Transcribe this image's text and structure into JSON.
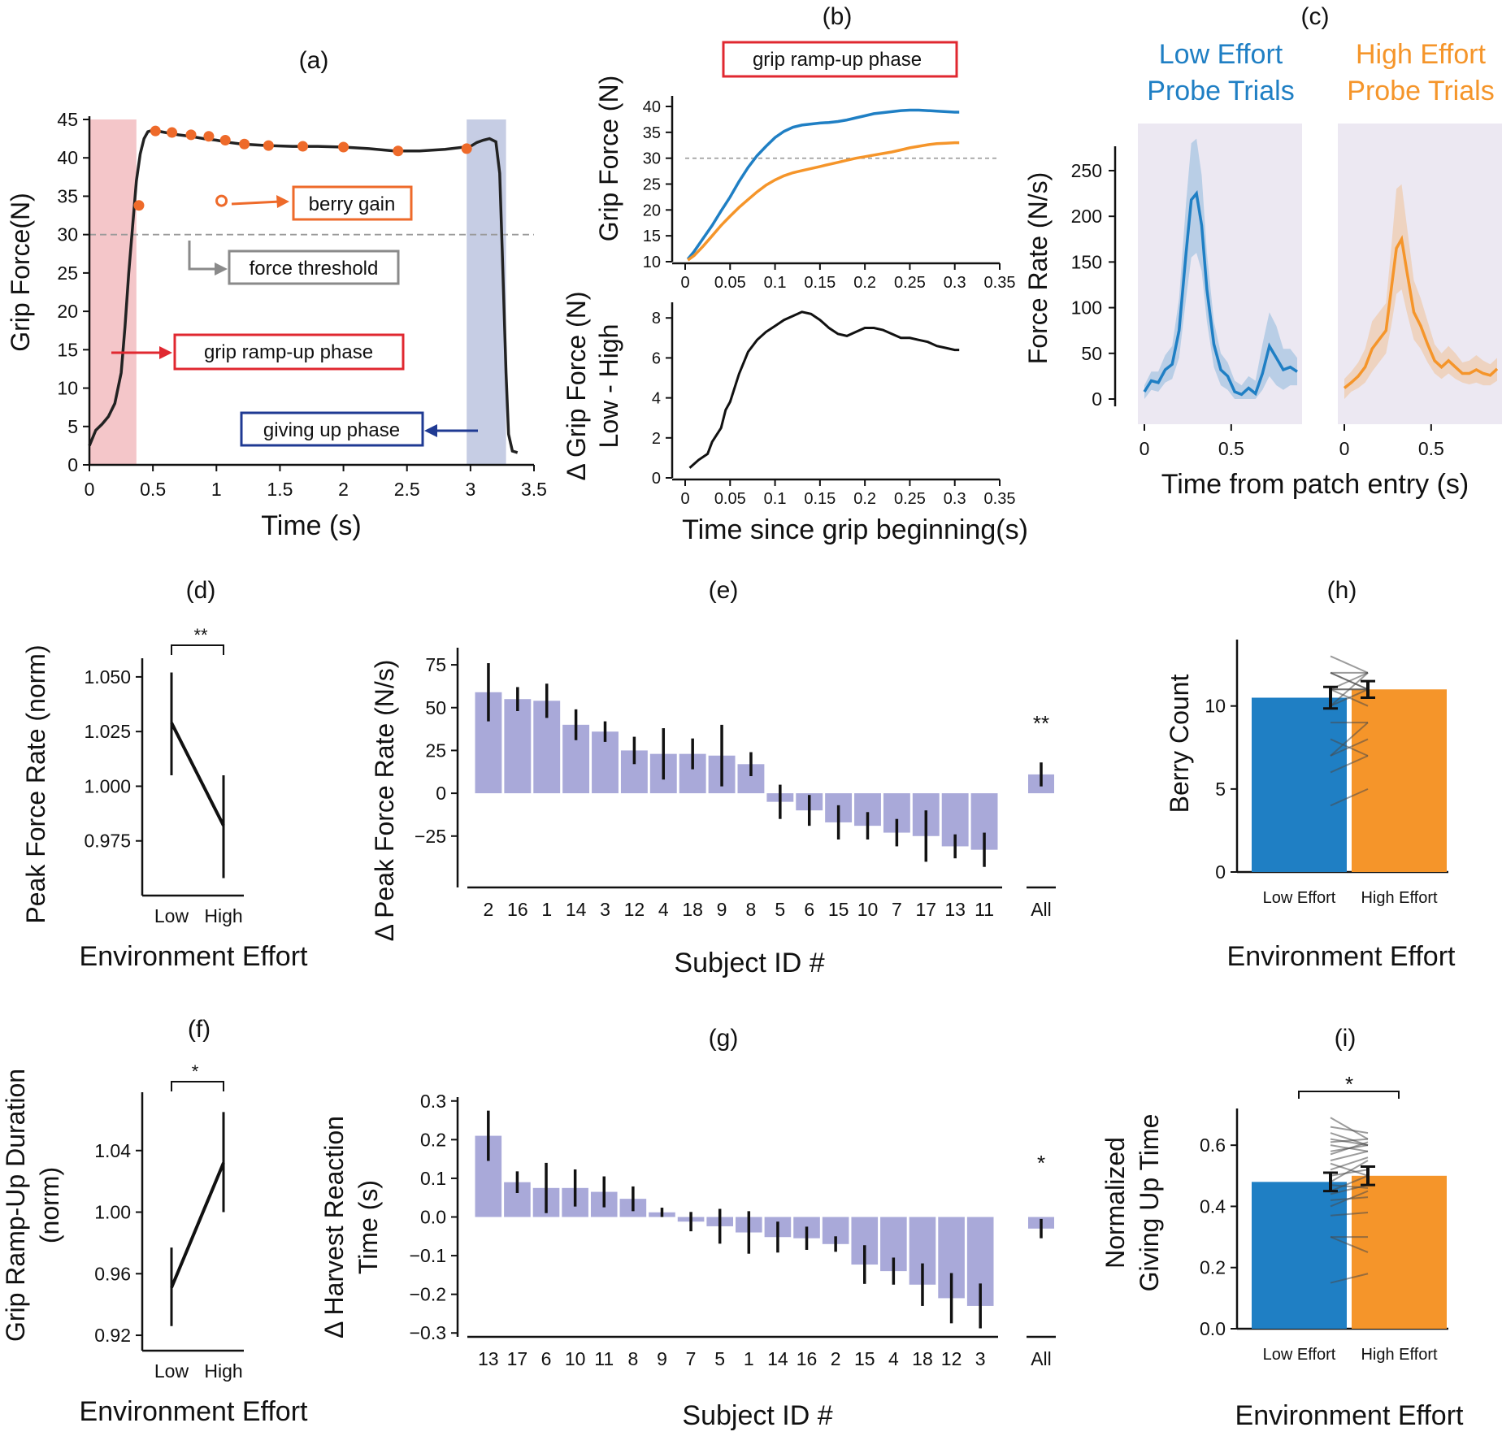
{
  "colors": {
    "blue": "#1f7fc4",
    "orange": "#f5952a",
    "bar_purple": "#a9a9d9",
    "red_shade": "#f4c6c9",
    "blue_shade": "#c6cde4",
    "probe_bg": "#ece8f2",
    "berry_orange": "#ee6a2a",
    "threshold_red": "#e02830",
    "gray": "#8a8a8a",
    "navy": "#1f3a93"
  },
  "panels": {
    "a": {
      "label": "(a)",
      "xlabel": "Time (s)",
      "ylabel": "Grip Force(N)"
    },
    "b": {
      "label": "(b)",
      "xlabel": "Time since grip beginning(s)",
      "ylabel_top": "Grip Force (N)",
      "ylabel_bottom_1": "Δ Grip Force (N)",
      "ylabel_bottom_2": "Low - High"
    },
    "c": {
      "label": "(c)",
      "ylabel": "Force Rate (N/s)",
      "xlabel": "Time from patch entry (s)",
      "low_title_1": "Low Effort",
      "low_title_2": "Probe Trials",
      "high_title_1": "High Effort",
      "high_title_2": "Probe Trials"
    },
    "d": {
      "label": "(d)",
      "ylabel": "Peak Force Rate (norm)",
      "xlabel": "Environment Effort",
      "sig": "**"
    },
    "e": {
      "label": "(e)",
      "ylabel": "Δ Peak Force Rate (N/s)",
      "xlabel": "Subject ID #",
      "sig": "**"
    },
    "f": {
      "label": "(f)",
      "ylabel_1": "Grip Ramp-Up Duration",
      "ylabel_2": "(norm)",
      "xlabel": "Environment Effort",
      "sig": "*"
    },
    "g": {
      "label": "(g)",
      "ylabel_1": "Δ Harvest Reaction",
      "ylabel_2": "Time (s)",
      "xlabel": "Subject ID #",
      "sig": "*"
    },
    "h": {
      "label": "(h)",
      "ylabel": "Berry Count",
      "xlabel": "Environment Effort"
    },
    "i": {
      "label": "(i)",
      "ylabel_1": "Normalized",
      "ylabel_2": "Giving Up Time",
      "xlabel": "Environment Effort",
      "sig": "*"
    }
  },
  "annotations": {
    "berry_gain": "berry gain",
    "force_threshold": "force threshold",
    "grip_ramp_up": "grip ramp-up phase",
    "giving_up": "giving up phase"
  },
  "chart_data": [
    {
      "id": "a",
      "type": "line",
      "xlim": [
        0,
        3.5
      ],
      "ylim": [
        0,
        45
      ],
      "xticks": [
        0,
        0.5,
        1,
        1.5,
        2,
        2.5,
        3,
        3.5
      ],
      "yticks": [
        0,
        5,
        10,
        15,
        20,
        25,
        30,
        35,
        40,
        45
      ],
      "threshold": 30,
      "ramp_region": [
        0,
        0.37
      ],
      "giving_up_region": [
        2.97,
        3.28
      ],
      "x": [
        0,
        0.05,
        0.1,
        0.15,
        0.2,
        0.25,
        0.28,
        0.31,
        0.34,
        0.37,
        0.4,
        0.43,
        0.46,
        0.5,
        0.6,
        0.7,
        0.8,
        0.9,
        1.0,
        1.1,
        1.2,
        1.4,
        1.6,
        1.8,
        2.0,
        2.2,
        2.4,
        2.6,
        2.8,
        3.0,
        3.05,
        3.1,
        3.15,
        3.2,
        3.23,
        3.25,
        3.28,
        3.3,
        3.33,
        3.37
      ],
      "y": [
        2.5,
        4.5,
        5.3,
        6.3,
        8.0,
        12.0,
        18.0,
        25.0,
        31.0,
        37.0,
        40.5,
        42.5,
        43.4,
        43.6,
        43.3,
        43.0,
        42.8,
        42.5,
        42.3,
        42.0,
        41.8,
        41.6,
        41.5,
        41.5,
        41.4,
        41.2,
        40.9,
        40.9,
        41.1,
        41.5,
        42.0,
        42.3,
        42.5,
        42.1,
        38.0,
        28.0,
        12.0,
        4.0,
        1.8,
        1.6
      ],
      "berry_points_x": [
        0.39,
        0.52,
        0.65,
        0.8,
        0.94,
        1.07,
        1.22,
        1.41,
        1.68,
        2.0,
        2.43,
        2.97
      ],
      "berry_points_y": [
        33.8,
        43.5,
        43.3,
        43.0,
        42.8,
        42.3,
        41.8,
        41.6,
        41.5,
        41.4,
        40.9,
        41.2
      ],
      "berry_legend_point": {
        "x": 1.04,
        "y": 34.4
      }
    },
    {
      "id": "b_top",
      "type": "line",
      "xlim": [
        0,
        0.35
      ],
      "ylim": [
        10,
        40
      ],
      "xticks": [
        0,
        0.05,
        0.1,
        0.15,
        0.2,
        0.25,
        0.3,
        0.35
      ],
      "yticks": [
        10,
        15,
        20,
        25,
        30,
        35,
        40
      ],
      "threshold": 30,
      "x": [
        0.003,
        0.01,
        0.02,
        0.03,
        0.04,
        0.05,
        0.06,
        0.07,
        0.08,
        0.09,
        0.1,
        0.11,
        0.12,
        0.13,
        0.14,
        0.15,
        0.16,
        0.17,
        0.18,
        0.19,
        0.2,
        0.21,
        0.22,
        0.23,
        0.24,
        0.25,
        0.26,
        0.27,
        0.28,
        0.29,
        0.3,
        0.305
      ],
      "series": [
        {
          "name": "Low Effort",
          "values": [
            10.5,
            12.0,
            14.5,
            17.0,
            19.8,
            22.5,
            25.5,
            28.2,
            30.5,
            32.3,
            34.0,
            35.2,
            36.0,
            36.4,
            36.6,
            36.8,
            36.9,
            37.1,
            37.4,
            37.8,
            38.2,
            38.6,
            38.8,
            39.0,
            39.2,
            39.3,
            39.3,
            39.2,
            39.1,
            39.0,
            38.9,
            38.9
          ]
        },
        {
          "name": "High Effort",
          "values": [
            10.3,
            11.2,
            13.0,
            15.0,
            17.0,
            18.8,
            20.5,
            22.0,
            23.5,
            24.8,
            25.8,
            26.6,
            27.2,
            27.6,
            28.0,
            28.4,
            28.8,
            29.2,
            29.6,
            30.0,
            30.3,
            30.6,
            30.9,
            31.2,
            31.6,
            32.0,
            32.3,
            32.6,
            32.8,
            32.9,
            33.0,
            33.0
          ]
        }
      ]
    },
    {
      "id": "b_bottom",
      "type": "line",
      "xlim": [
        0,
        0.35
      ],
      "ylim": [
        0,
        8.7
      ],
      "xticks": [
        0,
        0.05,
        0.1,
        0.15,
        0.2,
        0.25,
        0.3,
        0.35
      ],
      "yticks": [
        0,
        2,
        4,
        6,
        8
      ],
      "x": [
        0.005,
        0.015,
        0.025,
        0.03,
        0.04,
        0.045,
        0.05,
        0.06,
        0.07,
        0.08,
        0.09,
        0.1,
        0.11,
        0.12,
        0.13,
        0.14,
        0.15,
        0.16,
        0.17,
        0.18,
        0.19,
        0.2,
        0.21,
        0.22,
        0.23,
        0.24,
        0.25,
        0.26,
        0.27,
        0.28,
        0.29,
        0.3,
        0.305
      ],
      "y": [
        0.5,
        0.9,
        1.2,
        1.8,
        2.5,
        3.4,
        3.8,
        5.2,
        6.3,
        6.9,
        7.3,
        7.6,
        7.9,
        8.1,
        8.3,
        8.2,
        7.9,
        7.5,
        7.2,
        7.1,
        7.3,
        7.5,
        7.5,
        7.4,
        7.2,
        7.0,
        7.0,
        6.9,
        6.8,
        6.6,
        6.5,
        6.4,
        6.4
      ]
    },
    {
      "id": "c",
      "type": "line",
      "xlim": [
        0,
        0.88
      ],
      "ylim": [
        0,
        290
      ],
      "xticks": [
        0,
        0.5
      ],
      "yticks": [
        0,
        50,
        100,
        150,
        200,
        250
      ],
      "x": [
        0,
        0.04,
        0.08,
        0.12,
        0.16,
        0.2,
        0.24,
        0.27,
        0.3,
        0.33,
        0.36,
        0.4,
        0.44,
        0.48,
        0.52,
        0.56,
        0.6,
        0.64,
        0.68,
        0.72,
        0.76,
        0.8,
        0.84,
        0.88
      ],
      "series": [
        {
          "name": "Low Effort",
          "values": [
            8,
            20,
            18,
            32,
            38,
            75,
            160,
            218,
            225,
            190,
            120,
            60,
            32,
            25,
            8,
            5,
            12,
            6,
            28,
            58,
            45,
            32,
            35,
            30
          ],
          "lower": [
            0,
            10,
            8,
            18,
            22,
            45,
            110,
            155,
            160,
            140,
            85,
            35,
            15,
            10,
            0,
            0,
            0,
            0,
            10,
            25,
            15,
            10,
            15,
            15
          ],
          "upper": [
            15,
            30,
            30,
            48,
            58,
            110,
            215,
            280,
            285,
            245,
            160,
            85,
            50,
            40,
            20,
            15,
            25,
            20,
            60,
            95,
            80,
            55,
            55,
            45
          ]
        },
        {
          "name": "High Effort",
          "values": [
            12,
            18,
            25,
            35,
            55,
            65,
            75,
            120,
            165,
            175,
            140,
            95,
            80,
            60,
            42,
            35,
            42,
            35,
            28,
            28,
            32,
            28,
            26,
            33
          ],
          "lower": [
            0,
            8,
            12,
            18,
            30,
            40,
            50,
            80,
            115,
            120,
            95,
            65,
            55,
            40,
            28,
            22,
            28,
            22,
            18,
            16,
            18,
            15,
            15,
            20
          ],
          "upper": [
            22,
            30,
            40,
            55,
            85,
            95,
            105,
            165,
            230,
            235,
            190,
            130,
            110,
            85,
            60,
            50,
            58,
            50,
            40,
            42,
            48,
            42,
            38,
            45
          ]
        }
      ]
    },
    {
      "id": "d",
      "type": "line",
      "categories": [
        "Low",
        "High"
      ],
      "ylim": [
        0.95,
        1.06
      ],
      "yticks": [
        0.975,
        1.0,
        1.025,
        1.05
      ],
      "values": [
        1.029,
        0.982
      ],
      "err_low": [
        1.005,
        0.958
      ],
      "err_high": [
        1.052,
        1.005
      ]
    },
    {
      "id": "e",
      "type": "bar",
      "categories": [
        "2",
        "16",
        "1",
        "14",
        "3",
        "12",
        "4",
        "18",
        "9",
        "8",
        "5",
        "6",
        "15",
        "10",
        "7",
        "17",
        "13",
        "11"
      ],
      "values": [
        59,
        55,
        54,
        40,
        36,
        25,
        23,
        23,
        22,
        17,
        -5,
        -10,
        -17,
        -19,
        -23,
        -25,
        -31,
        -33
      ],
      "err": [
        17,
        7,
        10,
        9,
        6,
        8,
        15,
        9,
        18,
        7,
        10,
        9,
        10,
        8,
        8,
        15,
        7,
        10
      ],
      "all": {
        "category": "All",
        "value": 11,
        "err": 7
      },
      "ylim": [
        -55,
        85
      ],
      "yticks": [
        -25,
        0,
        25,
        50,
        75
      ]
    },
    {
      "id": "f",
      "type": "line",
      "categories": [
        "Low",
        "High"
      ],
      "ylim": [
        0.91,
        1.08
      ],
      "yticks": [
        0.92,
        0.96,
        1.0,
        1.04
      ],
      "values": [
        0.951,
        1.032
      ],
      "err_low": [
        0.926,
        1.0
      ],
      "err_high": [
        0.977,
        1.065
      ]
    },
    {
      "id": "g",
      "type": "bar",
      "categories": [
        "13",
        "17",
        "6",
        "10",
        "11",
        "8",
        "9",
        "7",
        "5",
        "1",
        "14",
        "16",
        "2",
        "15",
        "4",
        "18",
        "12",
        "3"
      ],
      "values": [
        0.21,
        0.09,
        0.075,
        0.075,
        0.065,
        0.047,
        0.012,
        -0.012,
        -0.024,
        -0.04,
        -0.052,
        -0.055,
        -0.07,
        -0.123,
        -0.14,
        -0.175,
        -0.21,
        -0.23
      ],
      "err": [
        0.065,
        0.028,
        0.065,
        0.048,
        0.04,
        0.032,
        0.012,
        0.025,
        0.045,
        0.055,
        0.04,
        0.03,
        0.02,
        0.05,
        0.035,
        0.055,
        0.065,
        0.058
      ],
      "all": {
        "category": "All",
        "value": -0.03,
        "err": 0.025
      },
      "ylim": [
        -0.31,
        0.31
      ],
      "yticks": [
        -0.3,
        -0.2,
        -0.1,
        0.0,
        0.1,
        0.2,
        0.3
      ]
    },
    {
      "id": "h",
      "type": "bar",
      "categories": [
        "Low Effort",
        "High Effort"
      ],
      "values": [
        10.5,
        11.0
      ],
      "err": [
        0.65,
        0.5
      ],
      "ylim": [
        0,
        14
      ],
      "yticks": [
        0,
        5,
        10
      ],
      "subjects": [
        [
          4,
          5
        ],
        [
          6,
          7
        ],
        [
          7,
          9
        ],
        [
          7,
          8
        ],
        [
          8,
          7
        ],
        [
          9,
          9
        ],
        [
          10,
          11
        ],
        [
          10,
          12
        ],
        [
          11,
          10
        ],
        [
          11,
          11
        ],
        [
          11,
          11
        ],
        [
          11,
          12
        ],
        [
          12,
          11
        ],
        [
          12,
          12
        ],
        [
          12,
          11
        ],
        [
          13,
          12
        ]
      ]
    },
    {
      "id": "i",
      "type": "bar",
      "categories": [
        "Low Effort",
        "High Effort"
      ],
      "values": [
        0.48,
        0.5
      ],
      "err": [
        0.03,
        0.03
      ],
      "ylim": [
        0,
        0.72
      ],
      "yticks": [
        0.0,
        0.2,
        0.4,
        0.6
      ],
      "subjects": [
        [
          0.15,
          0.18
        ],
        [
          0.3,
          0.3
        ],
        [
          0.3,
          0.25
        ],
        [
          0.37,
          0.38
        ],
        [
          0.4,
          0.45
        ],
        [
          0.42,
          0.43
        ],
        [
          0.44,
          0.47
        ],
        [
          0.45,
          0.5
        ],
        [
          0.47,
          0.46
        ],
        [
          0.48,
          0.55
        ],
        [
          0.5,
          0.52
        ],
        [
          0.52,
          0.56
        ],
        [
          0.54,
          0.5
        ],
        [
          0.55,
          0.58
        ],
        [
          0.57,
          0.61
        ],
        [
          0.58,
          0.6
        ],
        [
          0.6,
          0.58
        ],
        [
          0.61,
          0.62
        ],
        [
          0.62,
          0.6
        ],
        [
          0.64,
          0.6
        ],
        [
          0.66,
          0.64
        ],
        [
          0.69,
          0.62
        ]
      ]
    }
  ]
}
